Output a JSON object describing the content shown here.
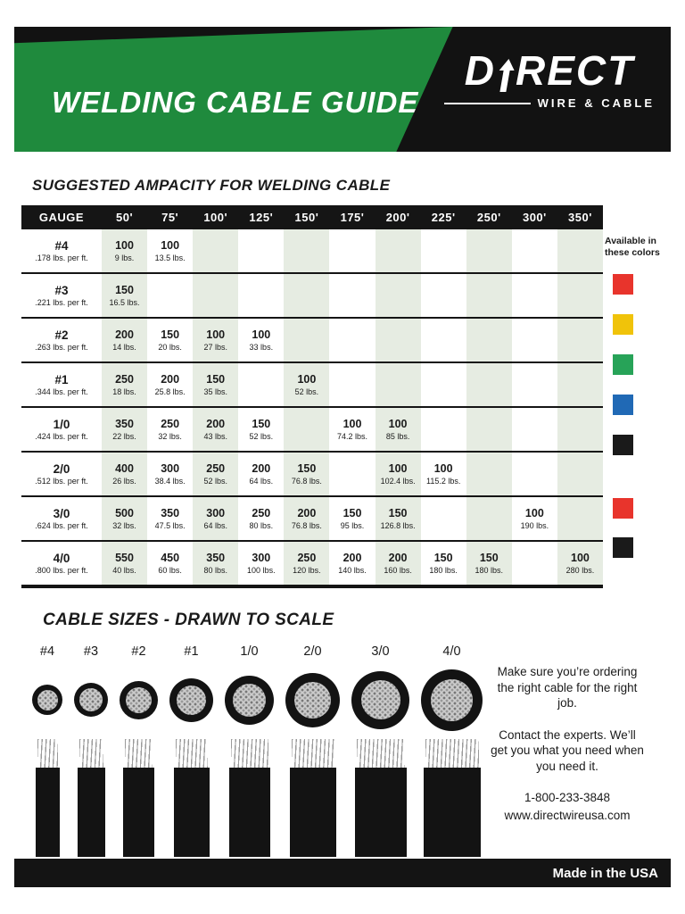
{
  "header": {
    "title": "WELDING CABLE GUIDE",
    "brand": {
      "part1": "D",
      "part2": "RECT",
      "tagline": "WIRE & CABLE"
    }
  },
  "ampacity": {
    "heading": "SUGGESTED AMPACITY FOR WELDING CABLE",
    "columns": [
      "GAUGE",
      "50'",
      "75'",
      "100'",
      "125'",
      "150'",
      "175'",
      "200'",
      "225'",
      "250'",
      "300'",
      "350'"
    ],
    "rows": [
      {
        "gauge": "#4",
        "weight": ".178 lbs. per ft.",
        "cells": [
          {
            "a": "100",
            "l": "9 lbs."
          },
          {
            "a": "100",
            "l": "13.5 lbs."
          },
          null,
          null,
          null,
          null,
          null,
          null,
          null,
          null,
          null
        ]
      },
      {
        "gauge": "#3",
        "weight": ".221 lbs. per ft.",
        "cells": [
          {
            "a": "150",
            "l": "16.5 lbs."
          },
          null,
          null,
          null,
          null,
          null,
          null,
          null,
          null,
          null,
          null
        ]
      },
      {
        "gauge": "#2",
        "weight": ".263 lbs. per ft.",
        "cells": [
          {
            "a": "200",
            "l": "14 lbs."
          },
          {
            "a": "150",
            "l": "20 lbs."
          },
          {
            "a": "100",
            "l": "27 lbs."
          },
          {
            "a": "100",
            "l": "33 lbs."
          },
          null,
          null,
          null,
          null,
          null,
          null,
          null
        ]
      },
      {
        "gauge": "#1",
        "weight": ".344 lbs. per ft.",
        "cells": [
          {
            "a": "250",
            "l": "18 lbs."
          },
          {
            "a": "200",
            "l": "25.8 lbs."
          },
          {
            "a": "150",
            "l": "35 lbs."
          },
          null,
          {
            "a": "100",
            "l": "52 lbs."
          },
          null,
          null,
          null,
          null,
          null,
          null
        ]
      },
      {
        "gauge": "1/0",
        "weight": ".424 lbs. per ft.",
        "cells": [
          {
            "a": "350",
            "l": "22 lbs."
          },
          {
            "a": "250",
            "l": "32 lbs."
          },
          {
            "a": "200",
            "l": "43 lbs."
          },
          {
            "a": "150",
            "l": "52 lbs."
          },
          null,
          {
            "a": "100",
            "l": "74.2 lbs."
          },
          {
            "a": "100",
            "l": "85 lbs."
          },
          null,
          null,
          null,
          null
        ]
      },
      {
        "gauge": "2/0",
        "weight": ".512 lbs. per ft.",
        "cells": [
          {
            "a": "400",
            "l": "26 lbs."
          },
          {
            "a": "300",
            "l": "38.4 lbs."
          },
          {
            "a": "250",
            "l": "52 lbs."
          },
          {
            "a": "200",
            "l": "64 lbs."
          },
          {
            "a": "150",
            "l": "76.8 lbs."
          },
          null,
          {
            "a": "100",
            "l": "102.4 lbs."
          },
          {
            "a": "100",
            "l": "115.2 lbs."
          },
          null,
          null,
          null
        ]
      },
      {
        "gauge": "3/0",
        "weight": ".624 lbs. per ft.",
        "cells": [
          {
            "a": "500",
            "l": "32 lbs."
          },
          {
            "a": "350",
            "l": "47.5 lbs."
          },
          {
            "a": "300",
            "l": "64 lbs."
          },
          {
            "a": "250",
            "l": "80 lbs."
          },
          {
            "a": "200",
            "l": "76.8 lbs."
          },
          {
            "a": "150",
            "l": "95 lbs."
          },
          {
            "a": "150",
            "l": "126.8 lbs."
          },
          null,
          null,
          {
            "a": "100",
            "l": "190 lbs."
          },
          null
        ]
      },
      {
        "gauge": "4/0",
        "weight": ".800 lbs. per ft.",
        "cells": [
          {
            "a": "550",
            "l": "40 lbs."
          },
          {
            "a": "450",
            "l": "60 lbs."
          },
          {
            "a": "350",
            "l": "80 lbs."
          },
          {
            "a": "300",
            "l": "100 lbs."
          },
          {
            "a": "250",
            "l": "120 lbs."
          },
          {
            "a": "200",
            "l": "140 lbs."
          },
          {
            "a": "200",
            "l": "160 lbs."
          },
          {
            "a": "150",
            "l": "180 lbs."
          },
          {
            "a": "150",
            "l": "180 lbs."
          },
          null,
          {
            "a": "100",
            "l": "280 lbs."
          }
        ]
      }
    ],
    "colors_label": "Available in these colors",
    "swatches": [
      "#e8342c",
      "#f0c30a",
      "#27a358",
      "#2069b5",
      "#1a1a1a",
      "#e8342c",
      "#1a1a1a"
    ],
    "shade_color": "#e6ece2"
  },
  "scale": {
    "heading": "CABLE SIZES - DRAWN TO SCALE",
    "sizes": [
      "#4",
      "#3",
      "#2",
      "#1",
      "1/0",
      "2/0",
      "3/0",
      "4/0"
    ],
    "note1": "Make sure you’re ordering the right cable for the right job.",
    "note2": "Contact the experts. We’ll get you what you need when you need it.",
    "phone": "1-800-233-3848",
    "website": "www.directwireusa.com"
  },
  "footer": {
    "made_in": "Made in the USA"
  },
  "colors": {
    "banner_green": "#1f8a3d",
    "bar_black": "#141414"
  }
}
